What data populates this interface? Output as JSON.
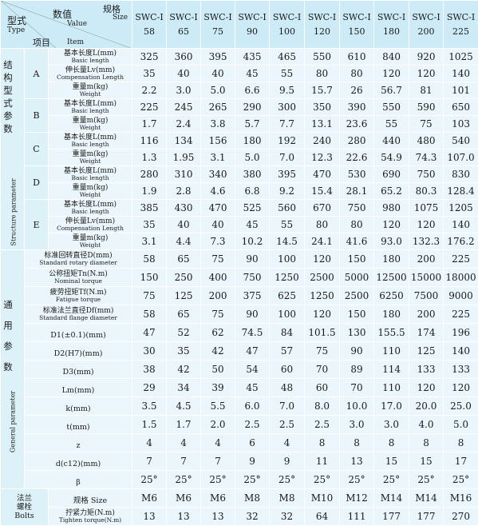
{
  "header": {
    "type_cn": "型式",
    "type_en": "Type",
    "value_cn": "数值",
    "value_en": "Value",
    "item_cn": "项目",
    "item_en": "Item",
    "size_cn": "规格",
    "size_en": "Size",
    "prefix": "SWC-Ⅰ",
    "sizes": [
      "58",
      "65",
      "75",
      "90",
      "100",
      "120",
      "150",
      "180",
      "200",
      "225"
    ]
  },
  "structure": {
    "label_cn": [
      "结",
      "构",
      "型",
      "式",
      "参",
      "数"
    ],
    "label_en": "Structure parameter",
    "groups": [
      {
        "letter": "A",
        "rows": [
          {
            "cn": "基本长度L(mm)",
            "en": "Basic length",
            "values": [
              "325",
              "360",
              "395",
              "435",
              "465",
              "550",
              "610",
              "840",
              "920",
              "1025"
            ]
          },
          {
            "cn": "伸长量Lv(mm)",
            "en": "Compensation Length",
            "values": [
              "35",
              "40",
              "40",
              "45",
              "55",
              "80",
              "80",
              "120",
              "120",
              "140"
            ]
          },
          {
            "cn": "重量m(kg)",
            "en": "Weight",
            "values": [
              "2.2",
              "3.0",
              "5.0",
              "6.6",
              "9.5",
              "15.7",
              "26",
              "56.7",
              "81",
              "101"
            ]
          }
        ]
      },
      {
        "letter": "B",
        "rows": [
          {
            "cn": "基本长度L(mm)",
            "en": "Basic length",
            "values": [
              "225",
              "245",
              "265",
              "290",
              "300",
              "350",
              "390",
              "550",
              "590",
              "650"
            ]
          },
          {
            "cn": "重量m(kg)",
            "en": "Weight",
            "values": [
              "1.7",
              "2.4",
              "3.8",
              "5.7",
              "7.7",
              "13.1",
              "23.6",
              "55",
              "75",
              "103"
            ]
          }
        ]
      },
      {
        "letter": "C",
        "rows": [
          {
            "cn": "基本长度L(mm)",
            "en": "Basic length",
            "values": [
              "116",
              "134",
              "156",
              "180",
              "192",
              "240",
              "280",
              "440",
              "480",
              "540"
            ]
          },
          {
            "cn": "重量m(kg)",
            "en": "Weight",
            "values": [
              "1.3",
              "1.95",
              "3.1",
              "5.0",
              "7.0",
              "12.3",
              "22.6",
              "54.9",
              "74.3",
              "107.0"
            ]
          }
        ]
      },
      {
        "letter": "D",
        "rows": [
          {
            "cn": "基本长度L(mm)",
            "en": "Basic length",
            "values": [
              "280",
              "310",
              "340",
              "380",
              "395",
              "470",
              "530",
              "690",
              "750",
              "830"
            ]
          },
          {
            "cn": "重量m(kg)",
            "en": "Weight",
            "values": [
              "1.9",
              "2.8",
              "4.6",
              "6.8",
              "9.2",
              "15.4",
              "28.1",
              "65.2",
              "80.3",
              "128.4"
            ]
          }
        ]
      },
      {
        "letter": "E",
        "rows": [
          {
            "cn": "基本长度L(mm)",
            "en": "Basic length",
            "values": [
              "385",
              "430",
              "470",
              "525",
              "560",
              "670",
              "750",
              "980",
              "1075",
              "1205"
            ]
          },
          {
            "cn": "伸长量Lv(mm)",
            "en": "Compensation Length",
            "values": [
              "35",
              "40",
              "40",
              "45",
              "55",
              "80",
              "80",
              "120",
              "120",
              "140"
            ]
          },
          {
            "cn": "重量m(kg)",
            "en": "Weight",
            "values": [
              "3.1",
              "4.4",
              "7.3",
              "10.2",
              "14.5",
              "24.1",
              "41.6",
              "93.0",
              "132.3",
              "176.2"
            ]
          }
        ]
      }
    ]
  },
  "general": {
    "label_cn": [
      "通",
      "用",
      "参",
      "数"
    ],
    "label_en": "General parameter",
    "rows": [
      {
        "cn": "标准回转直径D(mm)",
        "en": "Standard rotary diameter",
        "values": [
          "58",
          "65",
          "75",
          "90",
          "100",
          "120",
          "150",
          "180",
          "200",
          "225"
        ]
      },
      {
        "cn": "公称扭矩Tn(N.m)",
        "en": "Nominal torque",
        "values": [
          "150",
          "250",
          "400",
          "750",
          "1250",
          "2500",
          "5000",
          "12500",
          "15000",
          "18000"
        ]
      },
      {
        "cn": "疲劳扭矩Tf(N.m)",
        "en": "Fatigue torque",
        "values": [
          "75",
          "125",
          "200",
          "375",
          "625",
          "1250",
          "2500",
          "6250",
          "7500",
          "9000"
        ]
      },
      {
        "cn": "标准法兰直径Df(mm)",
        "en": "Standard flange diameter",
        "values": [
          "58",
          "65",
          "75",
          "90",
          "100",
          "120",
          "150",
          "180",
          "200",
          "225"
        ]
      },
      {
        "cn": "D1(±0.1)(mm)",
        "en": "",
        "values": [
          "47",
          "52",
          "62",
          "74.5",
          "84",
          "101.5",
          "130",
          "155.5",
          "174",
          "196"
        ]
      },
      {
        "cn": "D2(H7)(mm)",
        "en": "",
        "values": [
          "30",
          "35",
          "42",
          "47",
          "57",
          "75",
          "90",
          "110",
          "125",
          "140"
        ]
      },
      {
        "cn": "D3(mm)",
        "en": "",
        "values": [
          "38",
          "42",
          "50",
          "54",
          "60",
          "70",
          "89",
          "114",
          "133",
          "133"
        ]
      },
      {
        "cn": "Lm(mm)",
        "en": "",
        "values": [
          "29",
          "34",
          "39",
          "45",
          "48",
          "60",
          "70",
          "110",
          "120",
          "120"
        ]
      },
      {
        "cn": "k(mm)",
        "en": "",
        "values": [
          "3.5",
          "4.5",
          "5.5",
          "6.0",
          "7.0",
          "8.0",
          "10.0",
          "17.0",
          "20.0",
          "25.0"
        ]
      },
      {
        "cn": "t(mm)",
        "en": "",
        "values": [
          "1.5",
          "1.7",
          "2.0",
          "2.5",
          "2.5",
          "2.5",
          "3.0",
          "3.0",
          "4.0",
          "5.0"
        ]
      },
      {
        "cn": "z",
        "en": "",
        "values": [
          "4",
          "4",
          "4",
          "6",
          "4",
          "8",
          "8",
          "8",
          "8",
          "8"
        ]
      },
      {
        "cn": "d(c12)(mm)",
        "en": "",
        "values": [
          "7",
          "7",
          "7",
          "9",
          "9",
          "11",
          "13",
          "15",
          "15",
          "17"
        ]
      },
      {
        "cn": "β",
        "en": "",
        "values": [
          "25°",
          "25°",
          "25°",
          "25°",
          "25°",
          "25°",
          "25°",
          "25°",
          "25°",
          "25°"
        ]
      }
    ],
    "bolts": {
      "label_cn": [
        "法兰",
        "螺栓"
      ],
      "label_en": "Bolts",
      "rows": [
        {
          "cn": "规格 Size",
          "en": "",
          "values": [
            "M6",
            "M6",
            "M6",
            "M8",
            "M8",
            "M10",
            "M12",
            "M14",
            "M14",
            "M16"
          ]
        },
        {
          "cn": "拧紧力矩(N.m)",
          "en": "Tighten torque(N.m)",
          "values": [
            "13",
            "13",
            "13",
            "32",
            "32",
            "64",
            "111",
            "177",
            "177",
            "270"
          ]
        }
      ]
    }
  }
}
